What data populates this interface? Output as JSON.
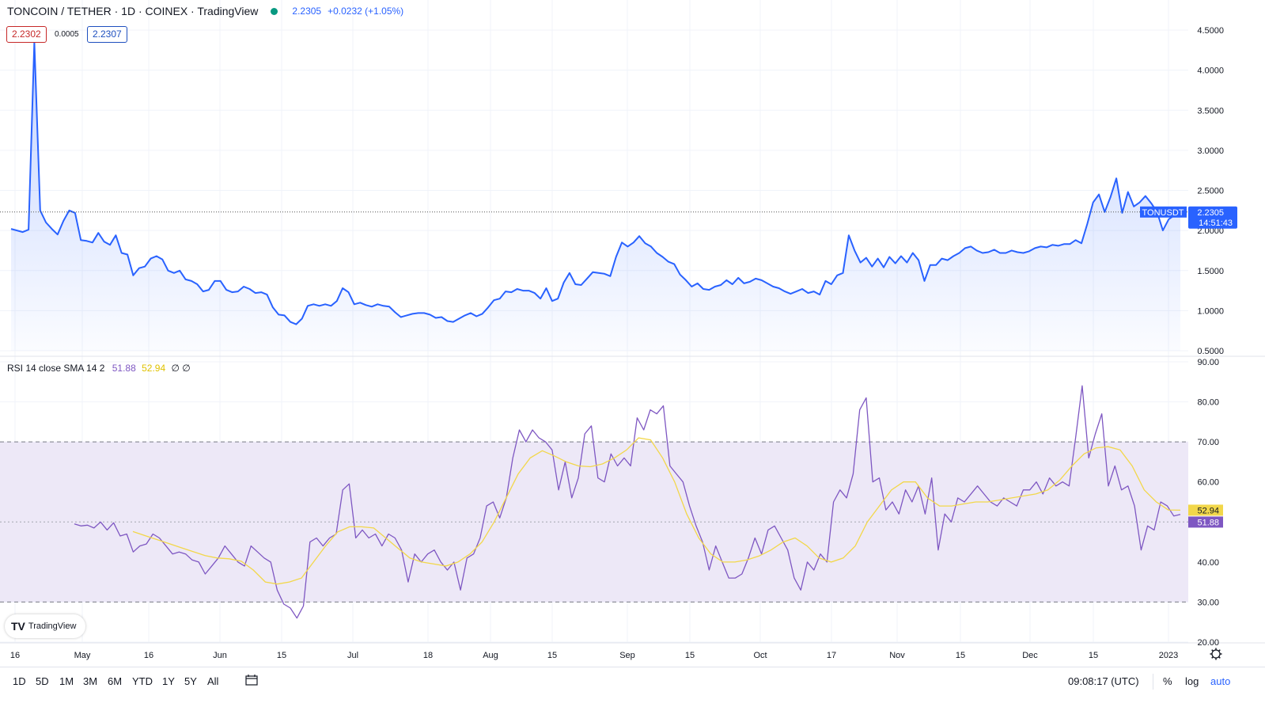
{
  "header": {
    "symbol": "TONCOIN / TETHER · 1D · COINEX · TradingView",
    "price": "2.2305",
    "change": "+0.0232 (+1.05%)",
    "bid": "2.2302",
    "spread": "0.0005",
    "ask": "2.2307"
  },
  "rsi_legend": {
    "name": "RSI 14 close SMA 14 2",
    "rsi": "51.88",
    "sma": "52.94",
    "extra": "∅ ∅"
  },
  "price_tag": {
    "ticker": "TONUSDT",
    "price": "2.2305",
    "countdown": "14:51:43"
  },
  "rsi_tags": {
    "sma": "52.94",
    "rsi": "51.88"
  },
  "logo_text": "TradingView",
  "toolbar": {
    "ranges": [
      "1D",
      "5D",
      "1M",
      "3M",
      "6M",
      "YTD",
      "1Y",
      "5Y",
      "All"
    ],
    "clock": "09:08:17 (UTC)",
    "percent": "%",
    "log": "log",
    "auto": "auto"
  },
  "colors": {
    "price_line": "#2962ff",
    "rsi_line": "#7e57c2",
    "sma_line": "#f2d74a",
    "rsi_band": "#ede8f7"
  },
  "chart_data": [
    {
      "type": "area",
      "title": "TONCOIN / TETHER · 1D · COINEX",
      "ylim": [
        0.5,
        4.5
      ],
      "yticks": [
        "4.5000",
        "4.0000",
        "3.5000",
        "3.0000",
        "2.5000",
        "2.0000",
        "1.5000",
        "1.0000",
        "0.5000"
      ],
      "xticks": [
        "16",
        "May",
        "16",
        "Jun",
        "15",
        "Jul",
        "18",
        "Aug",
        "15",
        "Sep",
        "15",
        "Oct",
        "17",
        "Nov",
        "15",
        "Dec",
        "15",
        "2023"
      ],
      "last_value": 2.2305,
      "series": [
        {
          "values": [
            2.02,
            2.0,
            1.98,
            2.01,
            4.35,
            2.25,
            2.1,
            2.02,
            1.95,
            2.12,
            2.25,
            2.22,
            1.88,
            1.87,
            1.85,
            1.97,
            1.86,
            1.82,
            1.94,
            1.72,
            1.7,
            1.44,
            1.53,
            1.55,
            1.65,
            1.68,
            1.64,
            1.5,
            1.47,
            1.5,
            1.39,
            1.37,
            1.33,
            1.24,
            1.26,
            1.37,
            1.37,
            1.26,
            1.23,
            1.24,
            1.3,
            1.27,
            1.22,
            1.23,
            1.2,
            1.04,
            0.95,
            0.94,
            0.86,
            0.83,
            0.9,
            1.06,
            1.08,
            1.06,
            1.08,
            1.06,
            1.12,
            1.28,
            1.23,
            1.08,
            1.1,
            1.07,
            1.05,
            1.08,
            1.06,
            1.05,
            0.98,
            0.92,
            0.94,
            0.96,
            0.97,
            0.97,
            0.95,
            0.91,
            0.92,
            0.87,
            0.86,
            0.9,
            0.94,
            0.97,
            0.93,
            0.96,
            1.04,
            1.13,
            1.15,
            1.24,
            1.23,
            1.27,
            1.25,
            1.25,
            1.22,
            1.15,
            1.28,
            1.12,
            1.15,
            1.35,
            1.47,
            1.33,
            1.32,
            1.4,
            1.48,
            1.47,
            1.46,
            1.43,
            1.67,
            1.85,
            1.8,
            1.85,
            1.93,
            1.84,
            1.8,
            1.72,
            1.67,
            1.61,
            1.58,
            1.45,
            1.38,
            1.3,
            1.34,
            1.27,
            1.26,
            1.3,
            1.32,
            1.38,
            1.33,
            1.41,
            1.34,
            1.36,
            1.4,
            1.38,
            1.34,
            1.3,
            1.28,
            1.24,
            1.21,
            1.24,
            1.27,
            1.22,
            1.24,
            1.2,
            1.37,
            1.33,
            1.44,
            1.47,
            1.94,
            1.75,
            1.6,
            1.66,
            1.55,
            1.65,
            1.54,
            1.67,
            1.59,
            1.68,
            1.6,
            1.72,
            1.63,
            1.37,
            1.57,
            1.57,
            1.65,
            1.63,
            1.68,
            1.72,
            1.78,
            1.8,
            1.75,
            1.72,
            1.73,
            1.76,
            1.72,
            1.72,
            1.75,
            1.73,
            1.72,
            1.74,
            1.78,
            1.8,
            1.79,
            1.82,
            1.81,
            1.83,
            1.83,
            1.88,
            1.84,
            2.08,
            2.35,
            2.45,
            2.23,
            2.42,
            2.65,
            2.22,
            2.48,
            2.3,
            2.35,
            2.43,
            2.34,
            2.23,
            2.0,
            2.14,
            2.19,
            2.2305
          ]
        }
      ]
    },
    {
      "type": "line",
      "title": "RSI 14 close SMA 14 2",
      "ylim": [
        20,
        90
      ],
      "yticks": [
        "90.00",
        "80.00",
        "70.00",
        "60.00",
        "50.00",
        "40.00",
        "30.00",
        "20.00"
      ],
      "band": [
        30,
        70
      ],
      "midline": 50,
      "series": [
        {
          "name": "RSI",
          "values": [
            49.5,
            49.0,
            49.2,
            48.5,
            50.0,
            48.0,
            49.8,
            46.5,
            47.0,
            42.5,
            44.0,
            44.5,
            47.0,
            46.0,
            44.0,
            42.0,
            42.5,
            42.0,
            40.5,
            40.0,
            37.0,
            39.0,
            41.0,
            44.0,
            42.0,
            40.0,
            39.0,
            44.0,
            42.5,
            41.0,
            40.0,
            33.0,
            29.5,
            28.5,
            26.0,
            29.0,
            45.0,
            46.0,
            44.0,
            46.0,
            47.0,
            58.0,
            59.5,
            46.0,
            48.0,
            46.0,
            47.0,
            44.0,
            47.0,
            46.0,
            43.0,
            35.0,
            42.0,
            40.0,
            42.0,
            43.0,
            40.0,
            38.0,
            40.0,
            33.0,
            41.0,
            42.0,
            46.0,
            54.0,
            55.0,
            51.0,
            56.0,
            66.0,
            73.0,
            70.0,
            73.0,
            71.0,
            70.0,
            68.0,
            58.0,
            65.0,
            56.0,
            61.0,
            72.0,
            74.0,
            61.0,
            60.0,
            67.0,
            64.0,
            66.0,
            64.0,
            76.0,
            73.0,
            78.0,
            77.0,
            79.0,
            64.0,
            62.0,
            60.0,
            54.0,
            49.0,
            45.0,
            38.0,
            44.0,
            40.0,
            36.0,
            36.0,
            37.0,
            41.0,
            46.0,
            42.0,
            48.0,
            49.0,
            46.0,
            43.0,
            36.0,
            33.0,
            40.0,
            38.0,
            42.0,
            40.0,
            55.0,
            58.0,
            56.0,
            62.0,
            78.0,
            81.0,
            60.0,
            61.0,
            53.0,
            55.0,
            52.0,
            58.0,
            55.0,
            59.0,
            52.0,
            61.0,
            43.0,
            52.0,
            50.0,
            56.0,
            55.0,
            57.0,
            59.0,
            57.0,
            55.0,
            54.0,
            56.0,
            55.0,
            54.0,
            58.0,
            58.0,
            60.0,
            57.0,
            61.0,
            59.0,
            60.0,
            59.0,
            71.0,
            84.0,
            66.0,
            72.0,
            77.0,
            59.0,
            64.0,
            58.0,
            59.0,
            54.0,
            43.0,
            49.0,
            48.0,
            55.0,
            54.0,
            51.5,
            51.88
          ]
        },
        {
          "name": "SMA",
          "values": [
            47.6,
            46.6,
            45.6,
            44.6,
            43.6,
            42.6,
            41.6,
            41.0,
            40.8,
            40.2,
            38.0,
            35.0,
            34.5,
            35.0,
            36.0,
            40.0,
            44.0,
            47.5,
            48.8,
            48.8,
            48.5,
            46.0,
            43.5,
            41.0,
            40.0,
            39.5,
            39.0,
            40.0,
            42.0,
            45.0,
            50.0,
            56.0,
            62.0,
            66.0,
            67.8,
            66.5,
            65.0,
            64.0,
            63.8,
            64.5,
            66.0,
            68.0,
            71.0,
            70.5,
            66.0,
            60.0,
            52.0,
            46.0,
            42.0,
            40.0,
            40.0,
            40.5,
            41.5,
            43.0,
            45.0,
            46.0,
            44.0,
            41.0,
            40.0,
            41.0,
            44.0,
            50.0,
            54.0,
            58.0,
            60.0,
            60.0,
            56.0,
            54.0,
            54.0,
            54.5,
            55.0,
            55.0,
            55.5,
            56.0,
            56.5,
            57.0,
            58.0,
            60.5,
            64.0,
            67.0,
            68.5,
            68.8,
            68.0,
            64.0,
            58.0,
            55.0,
            53.0,
            52.94
          ]
        }
      ]
    }
  ]
}
